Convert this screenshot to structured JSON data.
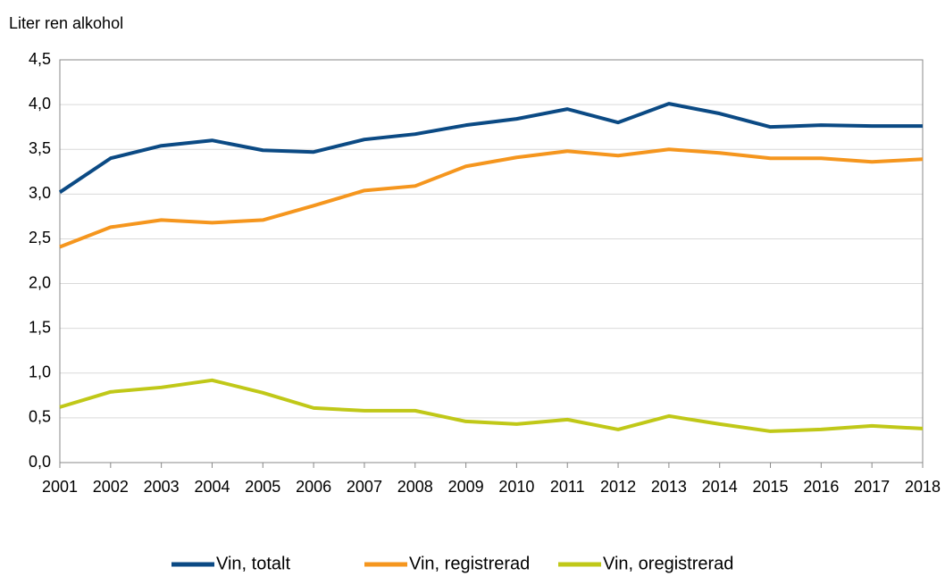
{
  "chart_data": {
    "type": "line",
    "y_label": "Liter ren alkohol",
    "categories": [
      "2001",
      "2002",
      "2003",
      "2004",
      "2005",
      "2006",
      "2007",
      "2008",
      "2009",
      "2010",
      "2011",
      "2012",
      "2013",
      "2014",
      "2015",
      "2016",
      "2017",
      "2018"
    ],
    "series": [
      {
        "name": "Vin, totalt",
        "color": "#0b4a84",
        "values": [
          3.02,
          3.4,
          3.54,
          3.6,
          3.49,
          3.47,
          3.61,
          3.67,
          3.77,
          3.84,
          3.95,
          3.8,
          4.01,
          3.9,
          3.75,
          3.77,
          3.76,
          3.76
        ]
      },
      {
        "name": "Vin, registrerad",
        "color": "#f5961e",
        "values": [
          2.41,
          2.63,
          2.71,
          2.68,
          2.71,
          2.87,
          3.04,
          3.09,
          3.31,
          3.41,
          3.48,
          3.43,
          3.5,
          3.46,
          3.4,
          3.4,
          3.36,
          3.39
        ]
      },
      {
        "name": "Vin, oregistrerad",
        "color": "#c0c818",
        "values": [
          0.62,
          0.79,
          0.84,
          0.92,
          0.78,
          0.61,
          0.58,
          0.58,
          0.46,
          0.43,
          0.48,
          0.37,
          0.52,
          0.43,
          0.35,
          0.37,
          0.41,
          0.38
        ]
      }
    ],
    "ylim": [
      0,
      4.5
    ],
    "yticks": [
      {
        "value": 0,
        "label": "0,0"
      },
      {
        "value": 0.5,
        "label": "0,5"
      },
      {
        "value": 1,
        "label": "1,0"
      },
      {
        "value": 1.5,
        "label": "1,5"
      },
      {
        "value": 2,
        "label": "2,0"
      },
      {
        "value": 2.5,
        "label": "2,5"
      },
      {
        "value": 3,
        "label": "3,0"
      },
      {
        "value": 3.5,
        "label": "3,5"
      },
      {
        "value": 4,
        "label": "4,0"
      },
      {
        "value": 4.5,
        "label": "4,5"
      }
    ],
    "grid": true,
    "legend": "bottom"
  }
}
